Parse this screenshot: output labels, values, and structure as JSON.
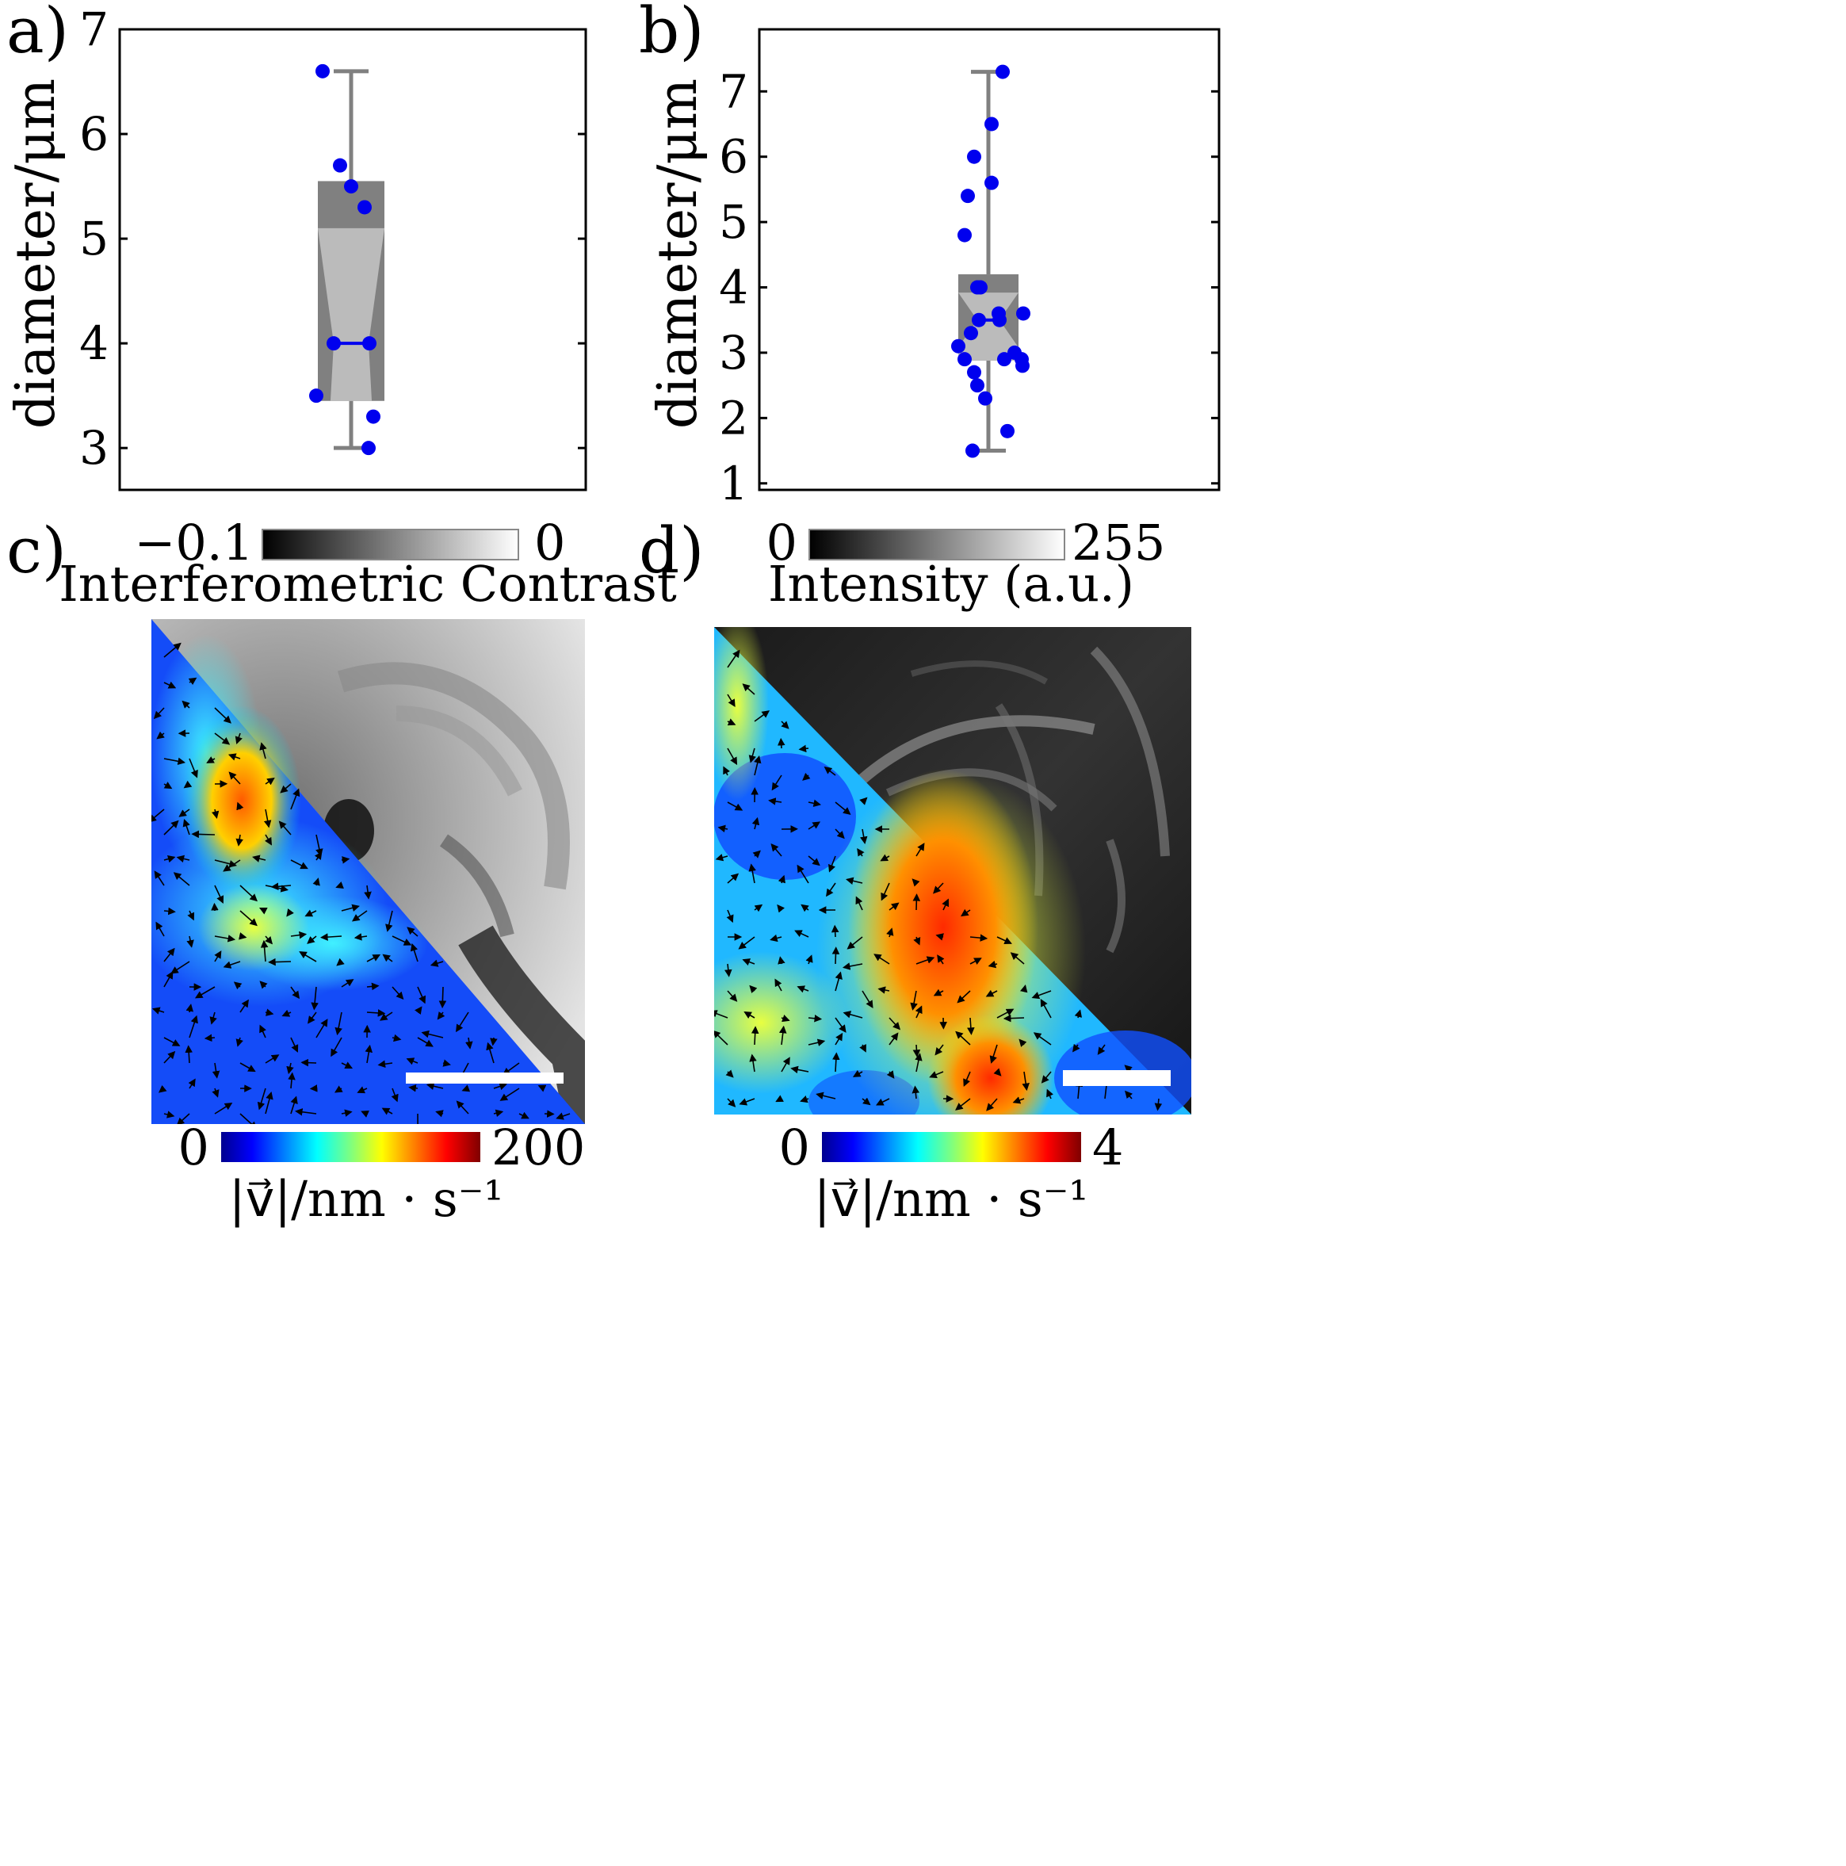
{
  "panels": {
    "a": {
      "letter": "a)"
    },
    "b": {
      "letter": "b)"
    },
    "c": {
      "letter": "c)",
      "top_colorbar": {
        "min": "−0.1",
        "max": "0",
        "label": "Interferometric Contrast"
      },
      "bottom_colorbar": {
        "min": "0",
        "max": "200",
        "label": "|v⃗|/nm · s⁻¹"
      }
    },
    "d": {
      "letter": "d)",
      "top_colorbar": {
        "min": "0",
        "max": "255",
        "label": "Intensity (a.u.)"
      },
      "bottom_colorbar": {
        "min": "0",
        "max": "4",
        "label": "|v⃗|/nm · s⁻¹"
      }
    }
  },
  "colors": {
    "points": "#0000ee",
    "box_dark": "#808080",
    "box_light": "#bbbbbb",
    "whisker": "#808080"
  },
  "chart_data": [
    {
      "type": "box",
      "panel": "a",
      "ylabel": "diameter/μm",
      "ylim": [
        2.6,
        7.0
      ],
      "yticks": [
        3,
        4,
        5,
        6,
        7
      ],
      "box": {
        "q1": 3.45,
        "median": 4.0,
        "q3": 5.55,
        "notch_low": 3.55,
        "notch_high": 5.1,
        "whisker_low": 3.0,
        "whisker_high": 6.6
      },
      "points": [
        6.6,
        5.7,
        5.5,
        5.3,
        4.0,
        4.0,
        3.5,
        3.3,
        3.0
      ]
    },
    {
      "type": "box",
      "panel": "b",
      "ylabel": "diameter/μm",
      "ylim": [
        0.9,
        7.95
      ],
      "yticks": [
        1,
        2,
        3,
        4,
        5,
        6,
        7
      ],
      "box": {
        "q1": 2.88,
        "median": 3.5,
        "q3": 4.2,
        "notch_low": 3.08,
        "notch_high": 3.92,
        "whisker_low": 1.5,
        "whisker_high": 7.3
      },
      "points": [
        7.3,
        6.5,
        6.0,
        5.6,
        5.4,
        4.8,
        4.0,
        4.0,
        3.6,
        3.6,
        3.5,
        3.5,
        3.3,
        3.1,
        3.0,
        2.9,
        2.9,
        2.9,
        2.8,
        2.7,
        2.5,
        2.3,
        1.8,
        1.5
      ]
    }
  ]
}
